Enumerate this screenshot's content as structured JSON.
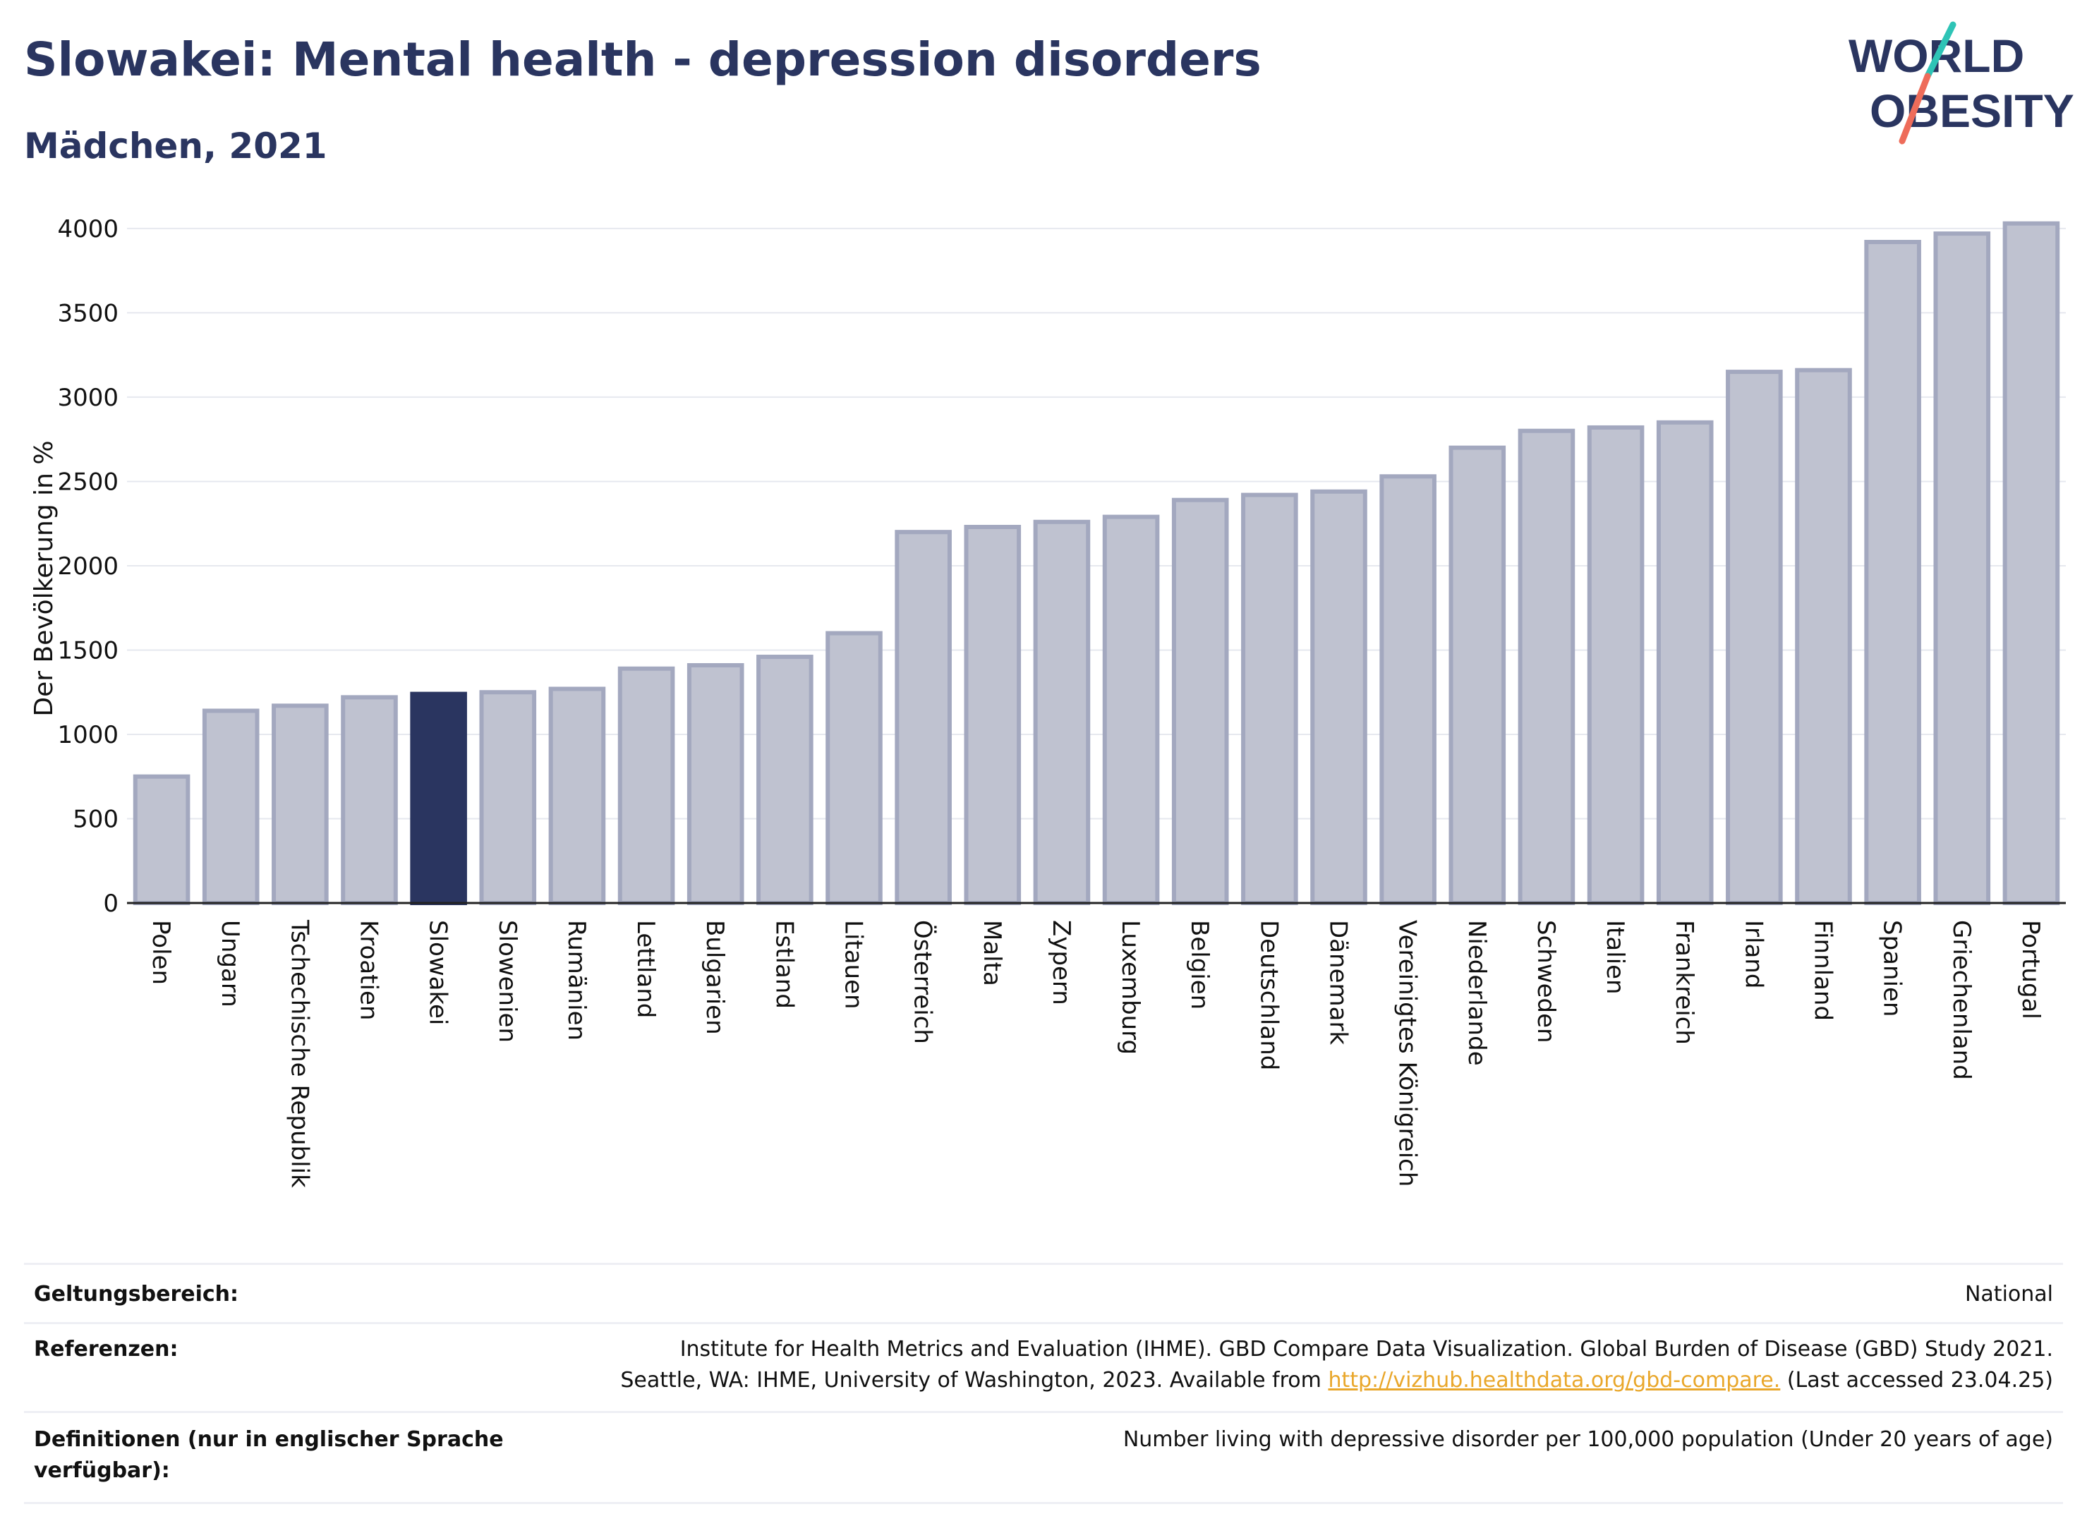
{
  "header": {
    "title": "Slowakei: Mental health - depression disorders",
    "subtitle": "Mädchen, 2021"
  },
  "logo": {
    "line1": "WORLD",
    "line2": "OBESITY"
  },
  "colors": {
    "bar": "#bfc2d0",
    "bar_edge": "#a3a8bf",
    "highlight": "#2a3560",
    "title": "#2a3560"
  },
  "chart_data": {
    "type": "bar",
    "ylabel": "Der Bevölkerung in %",
    "xlabel": "",
    "ylim": [
      0,
      4000
    ],
    "yticks": [
      0,
      500,
      1000,
      1500,
      2000,
      2500,
      3000,
      3500,
      4000
    ],
    "grid": true,
    "highlight": "Slowakei",
    "categories": [
      "Polen",
      "Ungarn",
      "Tschechische Republik",
      "Kroatien",
      "Slowakei",
      "Slowenien",
      "Rumänien",
      "Lettland",
      "Bulgarien",
      "Estland",
      "Litauen",
      "Österreich",
      "Malta",
      "Zypern",
      "Luxemburg",
      "Belgien",
      "Deutschland",
      "Dänemark",
      "Vereinigtes Königreich",
      "Niederlande",
      "Schweden",
      "Italien",
      "Frankreich",
      "Irland",
      "Finnland",
      "Spanien",
      "Griechenland",
      "Portugal"
    ],
    "values": [
      750,
      1140,
      1170,
      1220,
      1240,
      1250,
      1270,
      1390,
      1410,
      1460,
      1600,
      2200,
      2230,
      2260,
      2290,
      2390,
      2420,
      2440,
      2530,
      2700,
      2800,
      2820,
      2850,
      3150,
      3160,
      3920,
      3970,
      4030
    ]
  },
  "info": {
    "scope_label": "Geltungsbereich:",
    "scope_value": "National",
    "ref_label": "Referenzen:",
    "ref_line1": "Institute for Health Metrics and Evaluation (IHME). GBD Compare Data Visualization. Global Burden of Disease (GBD) Study 2021.",
    "ref_line2_pre": "Seattle, WA: IHME, University of Washington, 2023. Available from",
    "ref_link": "http://vizhub.healthdata.org/gbd-compare.",
    "ref_line2_post": "(Last accessed 23.04.25)",
    "def_label_1": "Definitionen (nur in englischer Sprache",
    "def_label_2": "verfügbar):",
    "def_value": "Number living with depressive disorder per 100,000 population (Under 20 years of age)"
  }
}
